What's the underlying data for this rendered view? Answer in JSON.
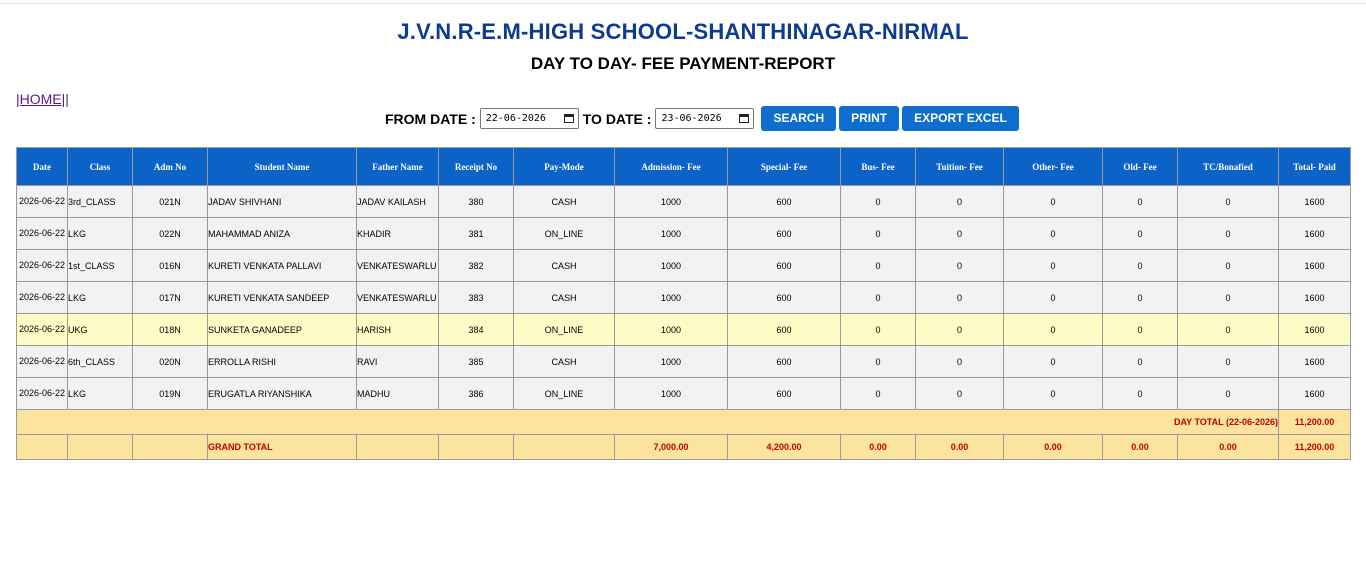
{
  "header": {
    "school_name": "J.V.N.R-E.M-HIGH SCHOOL-SHANTHINAGAR-NIRMAL",
    "report_title": "DAY TO DAY- FEE PAYMENT-REPORT",
    "home_link": "|HOME||"
  },
  "filters": {
    "from_label": "FROM DATE :",
    "from_value": "22-06-2026",
    "to_label": "TO DATE :",
    "to_value": "23-06-2026",
    "search_label": "SEARCH",
    "print_label": "PRINT",
    "export_label": "EXPORT EXCEL"
  },
  "table": {
    "columns": [
      "Date",
      "Class",
      "Adm No",
      "Student Name",
      "Father Name",
      "Receipt No",
      "Pay-Mode",
      "Admission- Fee",
      "Special- Fee",
      "Bus- Fee",
      "Tuition- Fee",
      "Other- Fee",
      "Old- Fee",
      "TC/Bonafied",
      "Total- Paid"
    ],
    "rows": [
      {
        "date": "2026-06-22",
        "cls": "3rd_CLASS",
        "adm": "021N",
        "student": "JADAV SHIVHANI",
        "father": "JADAV KAILASH",
        "receipt": "380",
        "mode": "CASH",
        "admission": "1000",
        "special": "600",
        "bus": "0",
        "tuition": "0",
        "other": "0",
        "old": "0",
        "tc": "0",
        "total": "1600"
      },
      {
        "date": "2026-06-22",
        "cls": "LKG",
        "adm": "022N",
        "student": "MAHAMMAD ANIZA",
        "father": "KHADIR",
        "receipt": "381",
        "mode": "ON_LINE",
        "admission": "1000",
        "special": "600",
        "bus": "0",
        "tuition": "0",
        "other": "0",
        "old": "0",
        "tc": "0",
        "total": "1600"
      },
      {
        "date": "2026-06-22",
        "cls": "1st_CLASS",
        "adm": "016N",
        "student": "KURETI VENKATA PALLAVI",
        "father": "VENKATESWARLU",
        "receipt": "382",
        "mode": "CASH",
        "admission": "1000",
        "special": "600",
        "bus": "0",
        "tuition": "0",
        "other": "0",
        "old": "0",
        "tc": "0",
        "total": "1600"
      },
      {
        "date": "2026-06-22",
        "cls": "LKG",
        "adm": "017N",
        "student": "KURETI VENKATA SANDEEP",
        "father": "VENKATESWARLU",
        "receipt": "383",
        "mode": "CASH",
        "admission": "1000",
        "special": "600",
        "bus": "0",
        "tuition": "0",
        "other": "0",
        "old": "0",
        "tc": "0",
        "total": "1600"
      },
      {
        "date": "2026-06-22",
        "cls": "UKG",
        "adm": "018N",
        "student": "SUNKETA GANADEEP",
        "father": "HARISH",
        "receipt": "384",
        "mode": "ON_LINE",
        "admission": "1000",
        "special": "600",
        "bus": "0",
        "tuition": "0",
        "other": "0",
        "old": "0",
        "tc": "0",
        "total": "1600"
      },
      {
        "date": "2026-06-22",
        "cls": "6th_CLASS",
        "adm": "020N",
        "student": "ERROLLA RISHI",
        "father": "RAVI",
        "receipt": "385",
        "mode": "CASH",
        "admission": "1000",
        "special": "600",
        "bus": "0",
        "tuition": "0",
        "other": "0",
        "old": "0",
        "tc": "0",
        "total": "1600"
      },
      {
        "date": "2026-06-22",
        "cls": "LKG",
        "adm": "019N",
        "student": "ERUGATLA RIYANSHIKA",
        "father": "MADHU",
        "receipt": "386",
        "mode": "ON_LINE",
        "admission": "1000",
        "special": "600",
        "bus": "0",
        "tuition": "0",
        "other": "0",
        "old": "0",
        "tc": "0",
        "total": "1600"
      }
    ],
    "day_total_label": "DAY TOTAL (22-06-2026)",
    "day_total_value": "11,200.00",
    "grand_total": {
      "label": "GRAND TOTAL",
      "admission": "7,000.00",
      "special": "4,200.00",
      "bus": "0.00",
      "tuition": "0.00",
      "other": "0.00",
      "old": "0.00",
      "tc": "0.00",
      "total": "11,200.00"
    }
  },
  "colors": {
    "header_bg": "#0b63c7",
    "title_blue": "#0b3c8f",
    "button_blue": "#0d6ecf",
    "total_bg": "#fde49e",
    "total_text": "#c00000",
    "highlight_row": "#fefcc6"
  }
}
